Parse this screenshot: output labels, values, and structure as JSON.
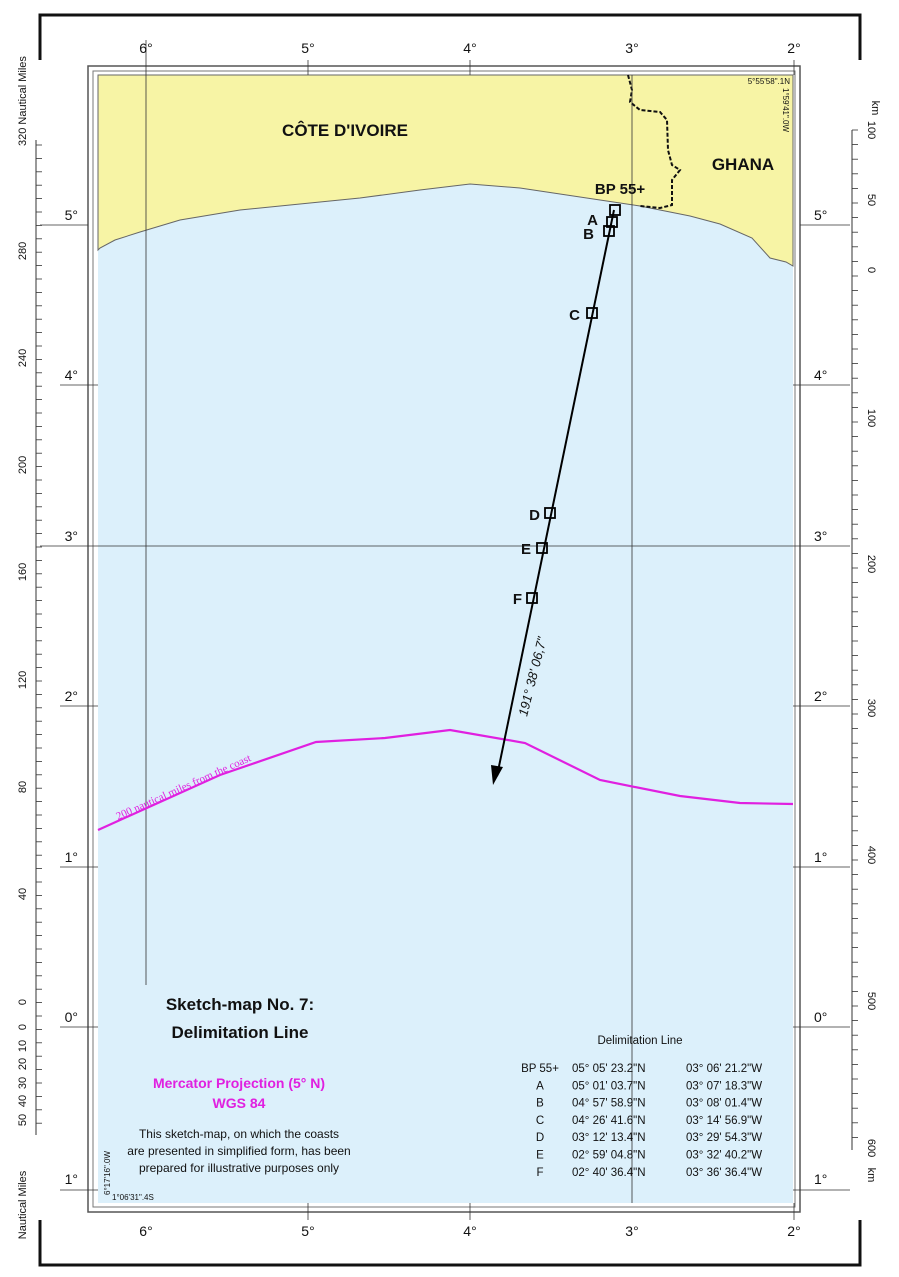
{
  "countries": {
    "west": "CÔTE D'IVOIRE",
    "east": "GHANA"
  },
  "longitudes": [
    "6°",
    "5°",
    "4°",
    "3°",
    "2°"
  ],
  "latitudes": [
    "5°",
    "4°",
    "3°",
    "2°",
    "1°",
    "0°",
    "1°"
  ],
  "nautical_miles": {
    "label_top": "320 Nautical Miles",
    "ticks": [
      "280",
      "240",
      "200",
      "160",
      "120",
      "80",
      "40",
      "0"
    ],
    "scale_ticks": [
      "0",
      "10",
      "20",
      "30",
      "40",
      "50"
    ],
    "label_bottom": "Nautical Miles"
  },
  "km_scale": {
    "label_top": "km",
    "top_ticks": [
      "100",
      "50",
      "0"
    ],
    "ticks": [
      "100",
      "200",
      "300",
      "400",
      "500",
      "600"
    ],
    "label_bottom": "km"
  },
  "corner_labels": {
    "top_right_lat": "5°55'58\".1N",
    "top_right_lon": "1°59'41\".0W",
    "bottom_left_lon": "6°17'16\".0W",
    "bottom_left_lat": "1°06'31\".4S"
  },
  "points": [
    "BP 55+",
    "A",
    "B",
    "C",
    "D",
    "E",
    "F"
  ],
  "azimuth_label": "191° 38' 06,7\"",
  "limit_label": "200 nautical miles from the coast",
  "title": {
    "line1": "Sketch-map No. 7:",
    "line2": "Delimitation Line"
  },
  "projection": {
    "line1": "Mercator Projection (5° N)",
    "line2": "WGS 84"
  },
  "disclaimer": [
    "This sketch-map, on which the coasts",
    "are presented in simplified form, has been",
    "prepared for illustrative purposes only"
  ],
  "table": {
    "header": "Delimitation Line",
    "rows": [
      {
        "point": "BP 55+",
        "lat": "05° 05' 23.2\"N",
        "lon": "03° 06' 21.2\"W"
      },
      {
        "point": "A",
        "lat": "05° 01' 03.7\"N",
        "lon": "03° 07' 18.3\"W"
      },
      {
        "point": "B",
        "lat": "04° 57' 58.9\"N",
        "lon": "03° 08' 01.4\"W"
      },
      {
        "point": "C",
        "lat": "04° 26' 41.6\"N",
        "lon": "03° 14' 56.9\"W"
      },
      {
        "point": "D",
        "lat": "03° 12' 13.4\"N",
        "lon": "03° 29' 54.3\"W"
      },
      {
        "point": "E",
        "lat": "02° 59' 04.8\"N",
        "lon": "03° 32' 40.2\"W"
      },
      {
        "point": "F",
        "lat": "02° 40' 36.4\"N",
        "lon": "03° 36' 36.4\"W"
      }
    ]
  },
  "colors": {
    "land": "#f7f4a5",
    "sea": "#dcf0fb",
    "limit": "#e020e0",
    "line": "#000000"
  }
}
